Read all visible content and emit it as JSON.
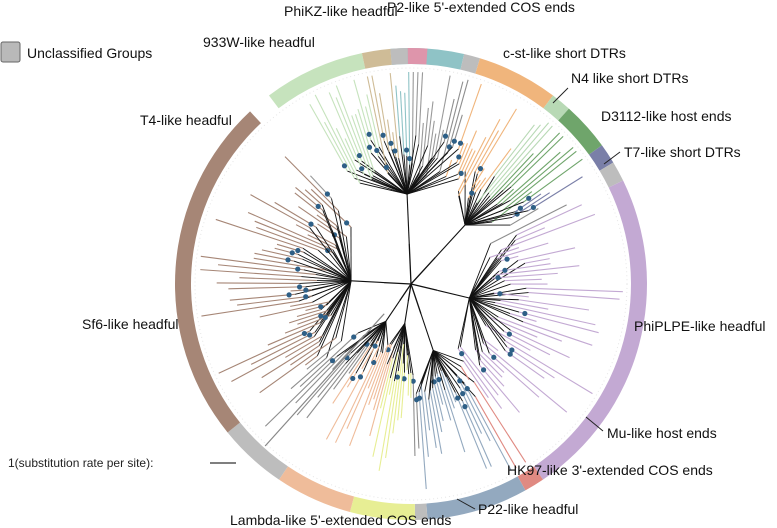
{
  "legend": {
    "label": "Unclassified Groups",
    "swatch_color": "#b9b9b9"
  },
  "scale_bar": {
    "label": "1(substitution rate per site):"
  },
  "groups": [
    {
      "label": "P2-like 5'-extended COS ends",
      "color": "#8fc3c6"
    },
    {
      "label": "c-st-like short DTRs",
      "color": "#f0b57c"
    },
    {
      "label": "N4 like short DTRs",
      "color": "#b8d9b5"
    },
    {
      "label": "D3112-like host ends",
      "color": "#6fa56b"
    },
    {
      "label": "T7-like short DTRs",
      "color": "#7a7fa8"
    },
    {
      "label": "PhiPLPE-like headful",
      "color": "#c3a9d3"
    },
    {
      "label": "Mu-like host ends",
      "color": "#e08a82"
    },
    {
      "label": "HK97-like 3'-extended COS ends",
      "color": "#93a9bf"
    },
    {
      "label": "P22-like headful",
      "color": "#e7ee94"
    },
    {
      "label": "Lambda-like 5'-extended COS ends",
      "color": "#efbc9a"
    },
    {
      "label": "Sf6-like headful",
      "color": "#a68676"
    },
    {
      "label": "T4-like headful",
      "color": "#c6e3bd"
    },
    {
      "label": "933W-like headful",
      "color": "#cfbc97"
    },
    {
      "label": "PhiKZ-like headful",
      "color": "#de95ab"
    }
  ],
  "colors": {
    "unclassified": "#bdbdbd",
    "tip_dot": "#2e5f86",
    "branch": "#111111"
  }
}
